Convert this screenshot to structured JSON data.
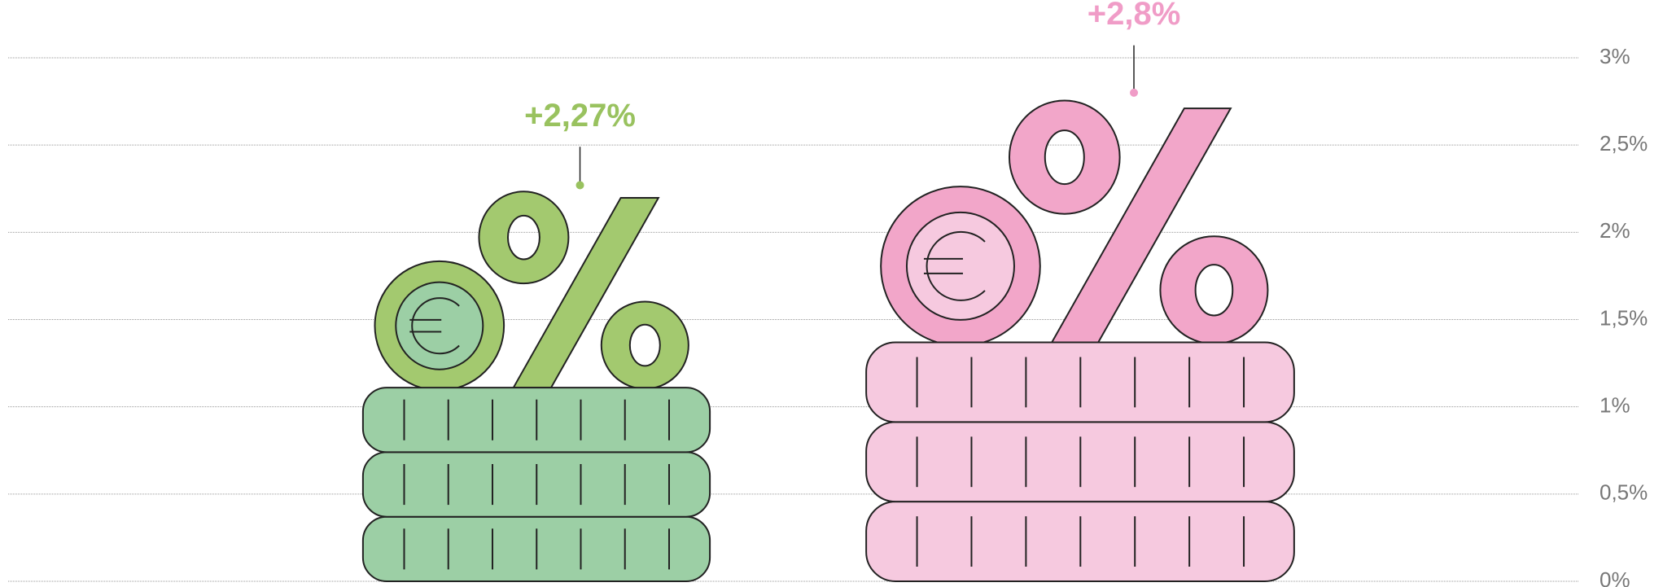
{
  "chart_data": {
    "type": "coin-stack",
    "values": [
      2.27,
      2.8
    ],
    "value_labels": [
      "+2,27%",
      "+2,8%"
    ],
    "colors": [
      "#a3c96f",
      "#f2a6c9"
    ],
    "coin_colors": [
      "#9ccfa5",
      "#f6c9df"
    ],
    "label_colors": [
      "#99c25f",
      "#f09cc7"
    ],
    "ylim": [
      0,
      3
    ],
    "yticks": [
      {
        "value": 0,
        "label": "0%"
      },
      {
        "value": 0.5,
        "label": "0,5%"
      },
      {
        "value": 1,
        "label": "1%"
      },
      {
        "value": 1.5,
        "label": "1,5%"
      },
      {
        "value": 2,
        "label": "2%"
      },
      {
        "value": 2.5,
        "label": "2,5%"
      },
      {
        "value": 3,
        "label": "3%"
      }
    ],
    "grid": true
  }
}
